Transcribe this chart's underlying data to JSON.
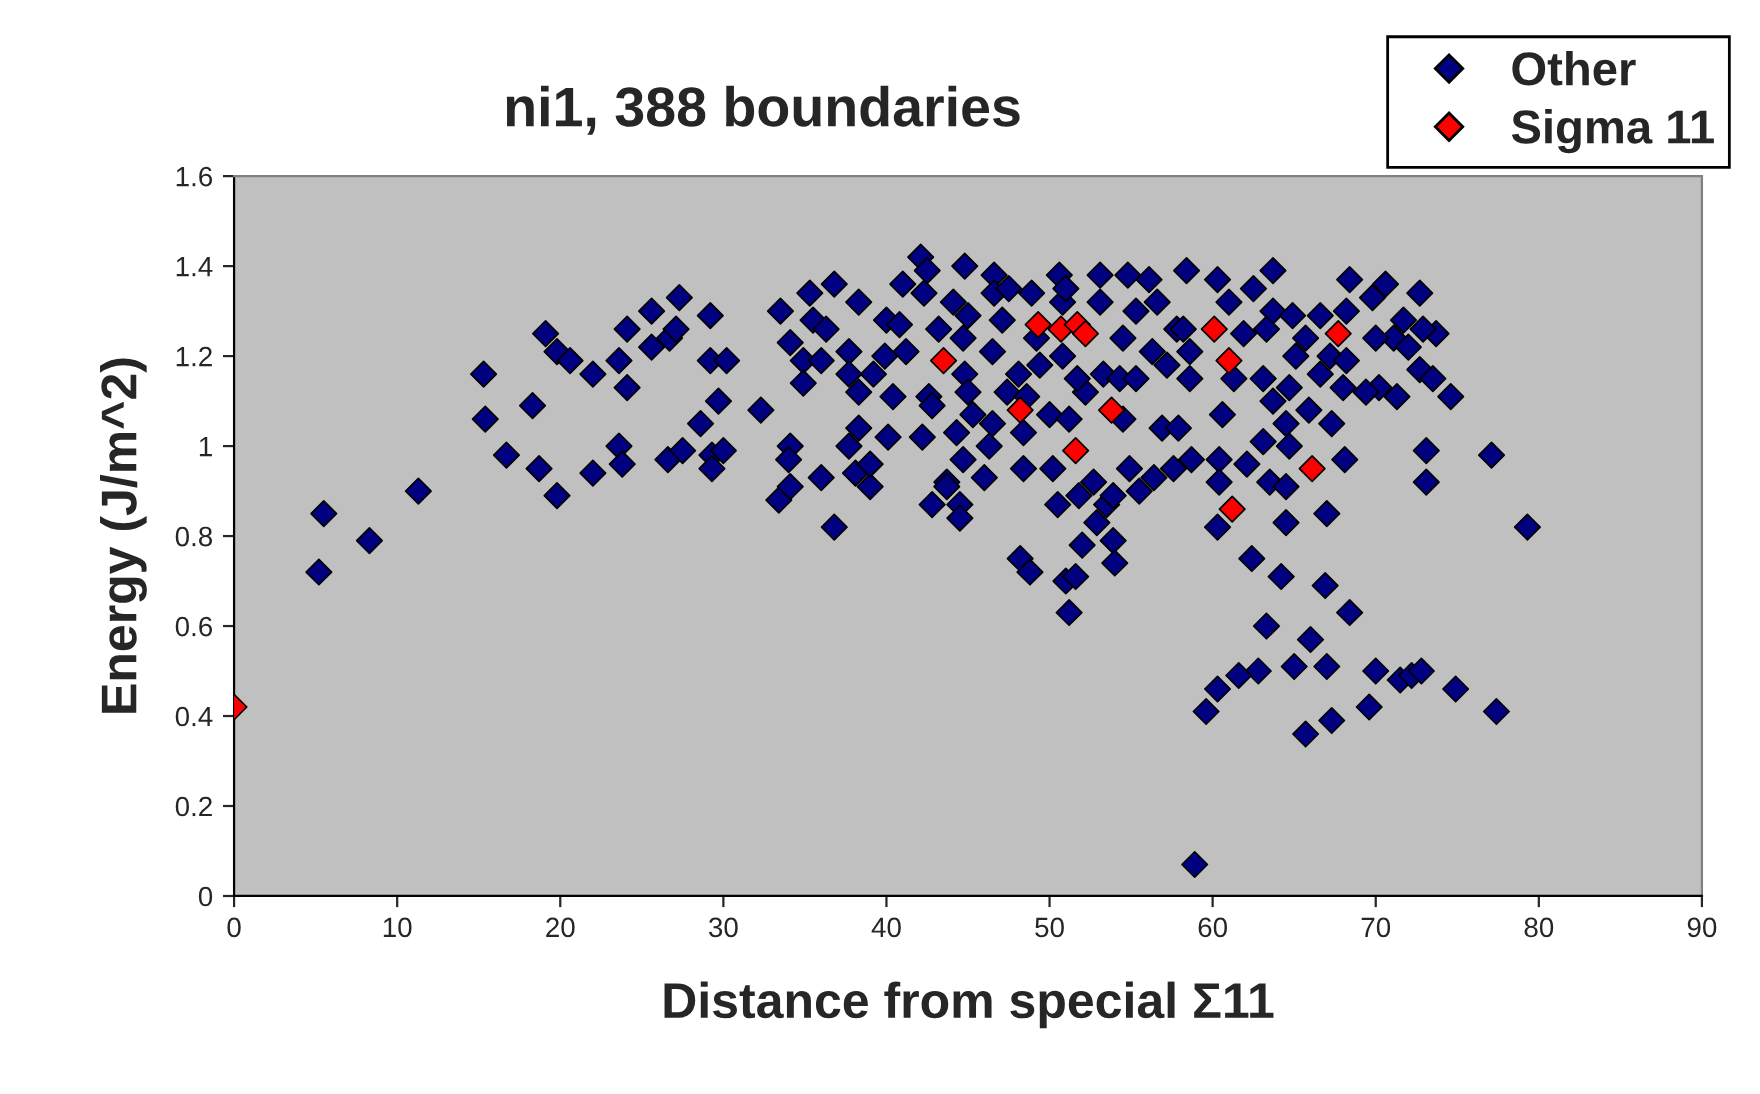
{
  "chart_data": {
    "type": "scatter",
    "title": "ni1, 388 boundaries",
    "xlabel": "Distance from special Σ11",
    "ylabel": "Energy (J/m^2)",
    "xlim": [
      0,
      90
    ],
    "xticks": [
      0,
      10,
      20,
      30,
      40,
      50,
      60,
      70,
      80,
      90
    ],
    "ylim": [
      0,
      1.6
    ],
    "yticks": [
      0,
      0.2,
      0.4,
      0.6,
      0.8,
      1,
      1.2,
      1.4,
      1.6
    ],
    "grid": false,
    "legend": "top right",
    "marker": "diamond",
    "series": [
      {
        "name": "Other",
        "color": "#000080",
        "x": [
          5.2,
          5.5,
          8.3,
          11.3,
          15.3,
          15.4,
          16.7,
          18.3,
          18.7,
          19.1,
          19.8,
          19.8,
          20.6,
          22.0,
          22.0,
          23.6,
          23.6,
          23.8,
          24.1,
          24.1,
          25.6,
          25.6,
          26.6,
          26.7,
          27.1,
          27.3,
          27.5,
          28.6,
          29.2,
          29.2,
          29.3,
          29.3,
          29.7,
          30.2,
          30.0,
          32.3,
          33.5,
          33.4,
          34.1,
          34.0,
          34.1,
          34.1,
          34.9,
          34.9,
          35.3,
          35.5,
          36.0,
          36.0,
          36.3,
          36.8,
          36.8,
          37.7,
          37.7,
          37.7,
          38.3,
          38.3,
          38.3,
          38.1,
          39.0,
          39.0,
          39.2,
          39.9,
          40.0,
          40.8,
          40.1,
          40.4,
          41.0,
          41.2,
          42.1,
          42.5,
          42.3,
          42.2,
          42.6,
          42.8,
          42.8,
          43.2,
          43.7,
          43.7,
          44.3,
          44.5,
          44.5,
          44.7,
          44.8,
          44.1,
          45.0,
          44.7,
          44.8,
          45.0,
          45.3,
          46.0,
          46.3,
          46.5,
          46.6,
          46.6,
          46.5,
          47.1,
          47.4,
          47.5,
          48.1,
          48.4,
          48.4,
          48.2,
          48.8,
          48.6,
          48.9,
          49.2,
          49.4,
          50.0,
          50.2,
          50.5,
          50.6,
          50.8,
          50.8,
          51.0,
          51.2,
          51.0,
          51.2,
          51.6,
          51.8,
          52.0,
          52.2,
          51.7,
          52.7,
          52.9,
          53.1,
          53.1,
          53.3,
          53.5,
          53.9,
          53.9,
          54.0,
          54.3,
          54.5,
          54.5,
          54.9,
          54.8,
          55.3,
          55.3,
          55.5,
          56.1,
          56.3,
          56.4,
          56.6,
          56.9,
          57.2,
          57.6,
          57.8,
          58.4,
          60.3,
          63.7,
          62.5,
          61.0,
          63.7,
          64.9,
          66.6,
          68.4,
          68.2,
          69.8,
          70.6,
          72.7,
          71.7,
          71.1,
          73.7,
          72.9,
          70.0,
          72.0,
          58.2,
          58.6,
          61.9,
          63.3,
          65.7,
          65.1,
          67.2,
          68.2,
          72.7,
          73.5,
          74.6,
          71.3,
          70.2,
          69.4,
          68.0,
          66.6,
          64.7,
          63.1,
          61.3,
          58.6,
          60.6,
          63.7,
          65.9,
          67.3,
          64.5,
          57.9,
          63.1,
          64.7,
          68.1,
          73.1,
          77.1,
          73.1,
          79.3,
          58.7,
          60.4,
          62.1,
          63.5,
          64.5,
          60.4,
          60.3,
          64.5,
          67.0,
          62.4,
          64.2,
          66.9,
          68.4,
          63.3,
          66.0,
          65.0,
          67.0,
          70.0,
          62.8,
          61.6,
          60.3,
          59.6,
          65.7,
          67.3,
          69.6,
          71.5,
          72.2,
          72.8,
          74.9,
          77.4,
          58.9
        ],
        "values": [
          0.72,
          0.85,
          0.79,
          0.9,
          1.16,
          1.06,
          0.98,
          1.09,
          0.95,
          1.25,
          1.21,
          0.89,
          1.19,
          1.16,
          0.94,
          1.19,
          1.0,
          0.96,
          1.26,
          1.13,
          1.3,
          1.22,
          0.97,
          1.24,
          1.26,
          1.33,
          0.99,
          1.05,
          1.29,
          1.19,
          0.98,
          0.95,
          1.1,
          1.19,
          0.99,
          1.08,
          1.3,
          0.88,
          1.0,
          0.97,
          0.91,
          1.23,
          1.19,
          1.14,
          1.34,
          1.28,
          1.19,
          0.93,
          1.26,
          1.36,
          0.82,
          1.21,
          1.16,
          1.0,
          1.32,
          1.12,
          1.04,
          0.94,
          0.91,
          0.96,
          1.16,
          1.2,
          1.28,
          1.27,
          1.02,
          1.11,
          1.36,
          1.21,
          1.42,
          1.39,
          1.34,
          1.02,
          1.11,
          1.09,
          0.87,
          1.26,
          0.92,
          0.91,
          1.03,
          0.87,
          0.84,
          1.24,
          1.4,
          1.32,
          1.29,
          0.97,
          1.16,
          1.12,
          1.07,
          0.93,
          1.0,
          1.05,
          1.38,
          1.34,
          1.21,
          1.28,
          1.12,
          1.35,
          1.16,
          0.95,
          1.03,
          0.75,
          0.72,
          1.11,
          1.34,
          1.24,
          1.18,
          1.07,
          0.95,
          0.87,
          1.38,
          1.32,
          1.2,
          1.35,
          1.06,
          0.7,
          0.63,
          0.71,
          0.89,
          0.78,
          1.12,
          1.15,
          0.92,
          0.83,
          1.38,
          1.32,
          1.16,
          0.87,
          0.89,
          0.79,
          0.74,
          1.15,
          1.06,
          1.24,
          0.95,
          1.38,
          1.3,
          1.15,
          0.9,
          1.37,
          1.21,
          0.93,
          1.32,
          1.04,
          1.18,
          0.95,
          1.26,
          1.39,
          1.37,
          1.39,
          1.35,
          1.32,
          1.3,
          1.29,
          1.29,
          1.37,
          1.3,
          1.33,
          1.36,
          1.34,
          1.28,
          1.24,
          1.25,
          1.26,
          1.24,
          1.22,
          1.26,
          1.21,
          1.25,
          1.26,
          1.24,
          1.2,
          1.2,
          1.19,
          1.17,
          1.15,
          1.11,
          1.11,
          1.13,
          1.12,
          1.13,
          1.16,
          1.13,
          1.15,
          1.15,
          1.15,
          1.07,
          1.1,
          1.08,
          1.05,
          1.05,
          1.04,
          1.01,
          1.0,
          0.97,
          0.99,
          0.98,
          0.92,
          0.82,
          0.97,
          0.97,
          0.96,
          0.92,
          0.91,
          0.92,
          0.82,
          0.83,
          0.85,
          0.75,
          0.71,
          0.69,
          0.63,
          0.6,
          0.57,
          0.51,
          0.51,
          0.5,
          0.5,
          0.49,
          0.46,
          0.41,
          0.36,
          0.39,
          0.42,
          0.48,
          0.49,
          0.5,
          0.46,
          0.41,
          0.07
        ]
      },
      {
        "name": "Sigma 11",
        "color": "#ff0000",
        "x": [
          0,
          43.5,
          49.3,
          50.7,
          51.7,
          52.2,
          48.2,
          53.8,
          51.6,
          60.1,
          61.0,
          67.7,
          66.1,
          61.2
        ],
        "values": [
          0.42,
          1.19,
          1.27,
          1.26,
          1.27,
          1.25,
          1.08,
          1.08,
          0.99,
          1.26,
          1.19,
          1.25,
          0.95,
          0.86
        ]
      }
    ]
  }
}
